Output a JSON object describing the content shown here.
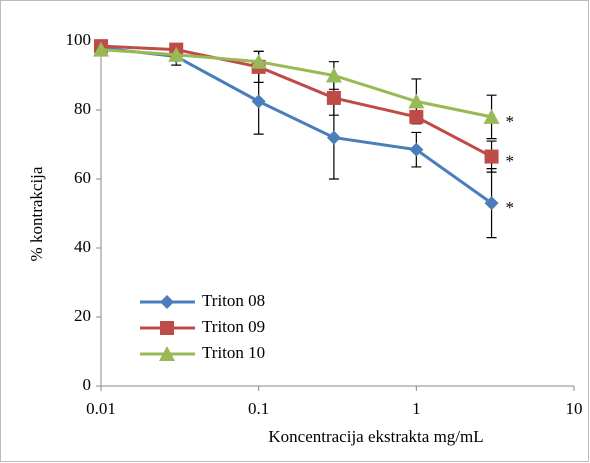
{
  "chart_data": {
    "type": "line",
    "x_label": "Koncentracija ekstrakta mg/mL",
    "y_label": "%  kontrakcija",
    "x": [
      0.01,
      0.03,
      0.1,
      0.3,
      1,
      3
    ],
    "xlim": [
      0.01,
      10
    ],
    "xticks": [
      0.01,
      0.1,
      1,
      10
    ],
    "xscale": "log",
    "ylim": [
      0,
      100
    ],
    "yticks": [
      0,
      20,
      40,
      60,
      80,
      100
    ],
    "grid": false,
    "legend": "lower left",
    "series": [
      {
        "name": "Triton 08",
        "color": "#4a7ebb",
        "marker": "diamond",
        "values": [
          98,
          95.5,
          82.5,
          72,
          68.5,
          53
        ],
        "errors": [
          0,
          2.5,
          9.5,
          12,
          5,
          10
        ]
      },
      {
        "name": "Triton 09",
        "color": "#be4b48",
        "marker": "square",
        "values": [
          98.5,
          97.5,
          92.5,
          83.5,
          78,
          66.5
        ],
        "errors": [
          0,
          0,
          4.5,
          5,
          0,
          4.5
        ]
      },
      {
        "name": "Triton 10",
        "color": "#98b954",
        "marker": "triangle",
        "values": [
          97.5,
          96,
          94,
          90,
          82.5,
          78
        ],
        "errors": [
          0,
          0,
          3,
          4,
          6.5,
          6.3
        ]
      }
    ],
    "annotations": [
      "*",
      "*",
      "*"
    ]
  }
}
